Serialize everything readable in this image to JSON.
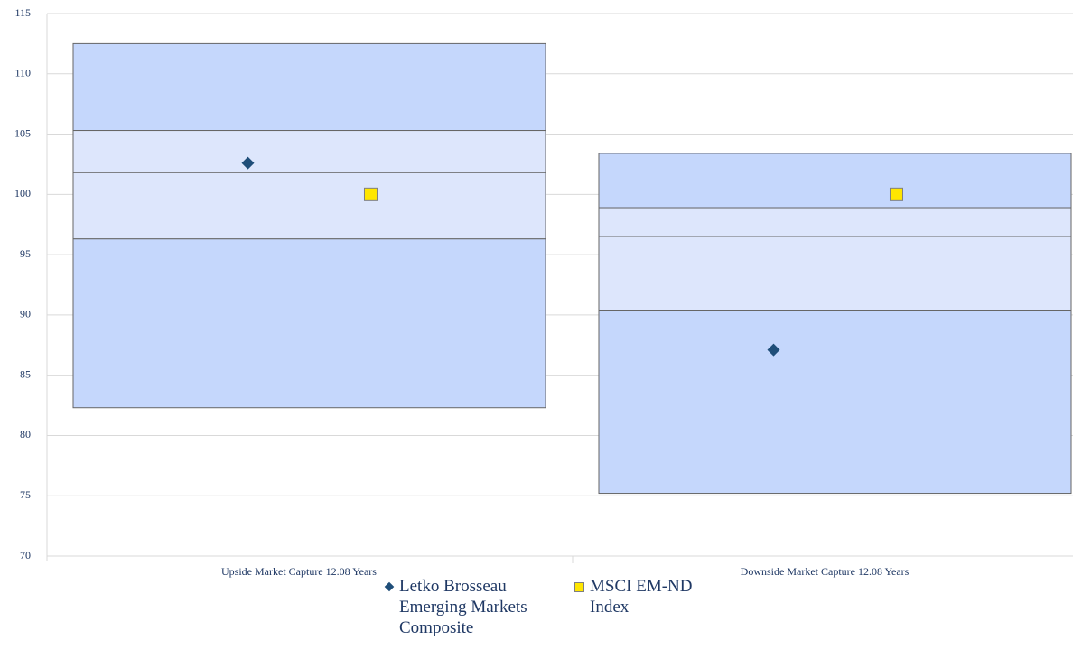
{
  "chart_data": {
    "type": "floating_box",
    "categories": [
      "Upside Market Capture 12.08 Years",
      "Downside Market Capture 12.08 Years"
    ],
    "boxes": {
      "top": [
        112.5,
        103.4
      ],
      "upper": [
        105.3,
        98.9
      ],
      "median": [
        101.8,
        96.5
      ],
      "lower": [
        96.3,
        90.4
      ],
      "bottom": [
        82.3,
        75.2
      ],
      "outer_color": "#c5d7fc",
      "inner_color": "#dde6fc"
    },
    "series": [
      {
        "name": "Letko Brosseau Emerging Markets Composite",
        "color": "#1f4e79",
        "marker": "diamond",
        "values": [
          102.6,
          87.1
        ]
      },
      {
        "name": "MSCI EM-ND Index",
        "color": "#ffe600",
        "marker": "square",
        "values": [
          100,
          100
        ]
      }
    ],
    "ylim": [
      70,
      115
    ],
    "yticks": [
      70,
      75,
      80,
      85,
      90,
      95,
      100,
      105,
      110,
      115
    ],
    "grid": true,
    "legend": "bottom"
  }
}
